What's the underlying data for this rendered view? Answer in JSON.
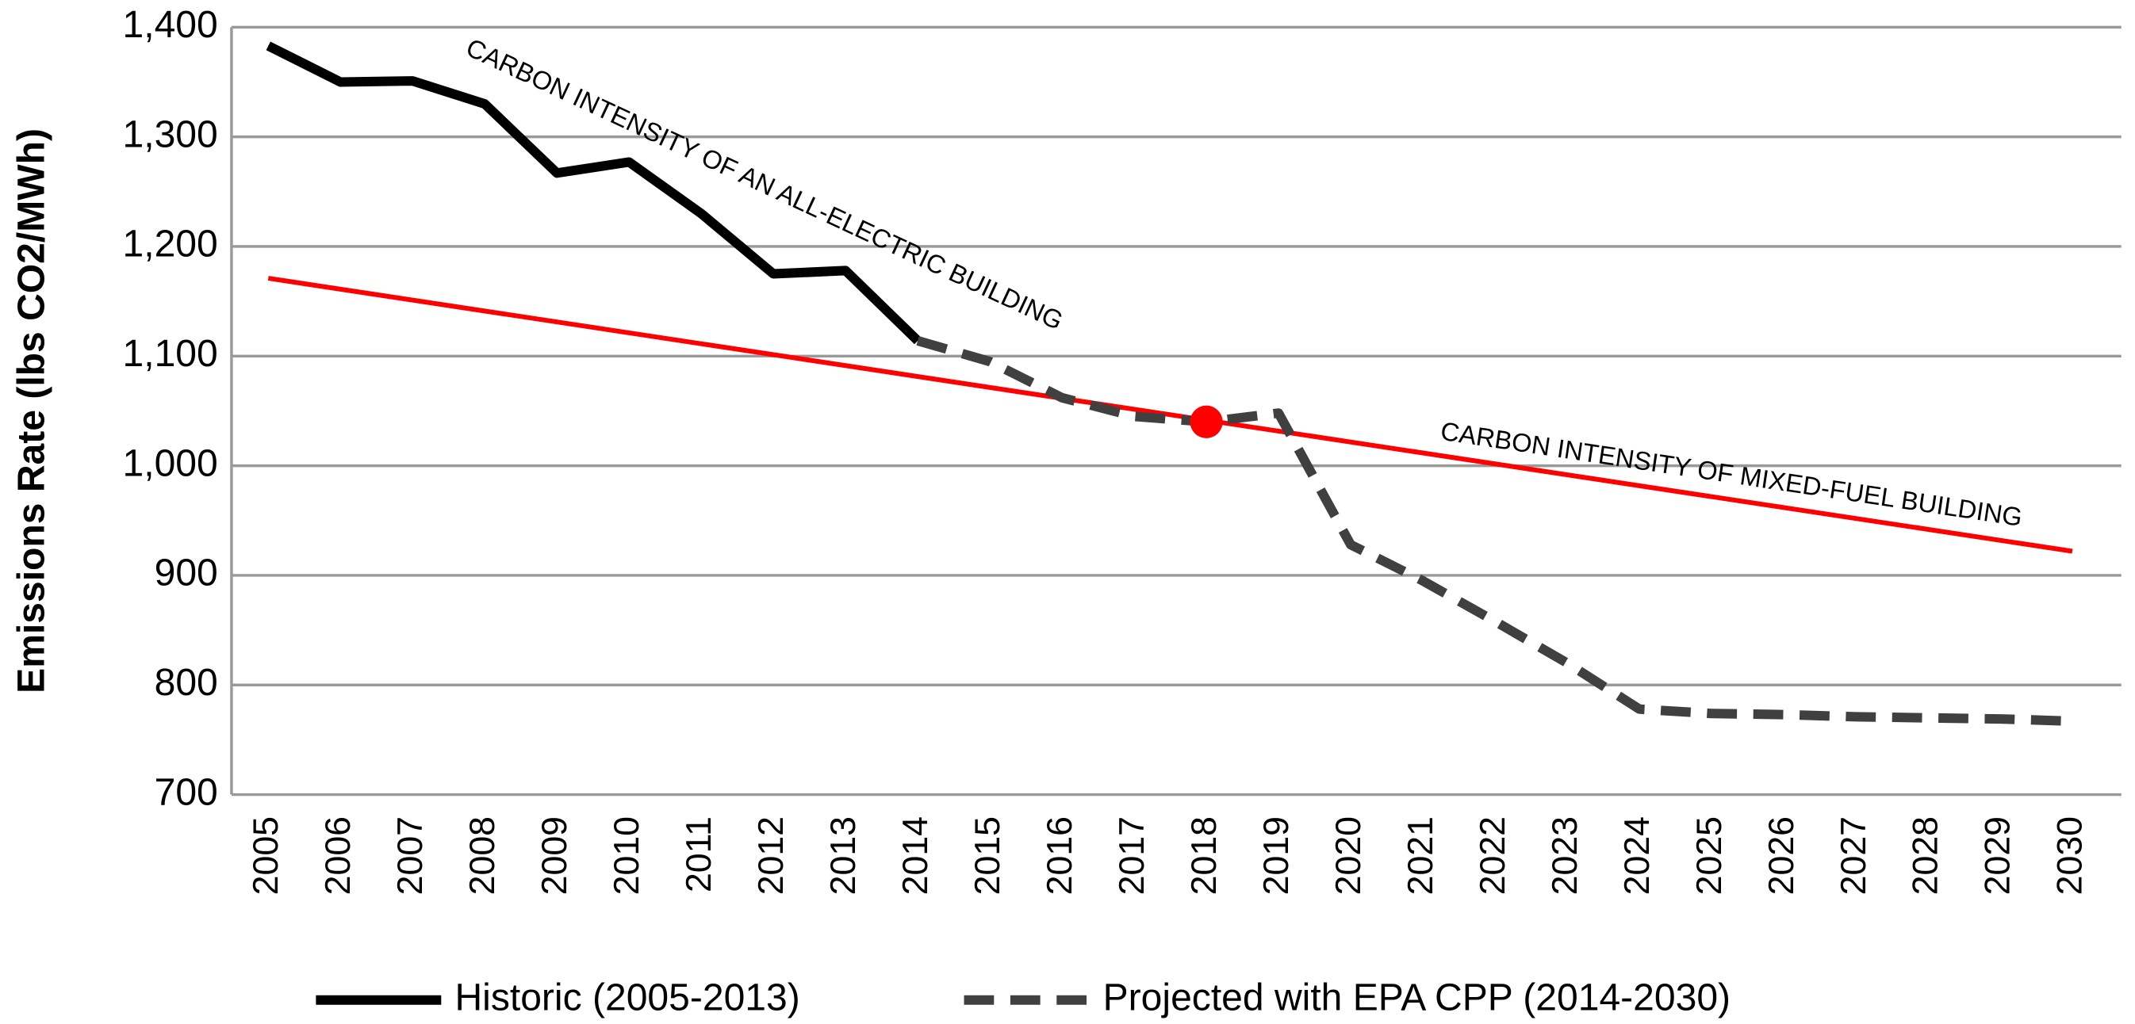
{
  "chart_data": {
    "type": "line",
    "y_label": "Emissions Rate (lbs CO2/MWh)",
    "categories": [
      "2005",
      "2006",
      "2007",
      "2008",
      "2009",
      "2010",
      "2011",
      "2012",
      "2013",
      "2014",
      "2015",
      "2016",
      "2017",
      "2018",
      "2019",
      "2020",
      "2021",
      "2022",
      "2023",
      "2024",
      "2025",
      "2026",
      "2027",
      "2028",
      "2029",
      "2030"
    ],
    "series": [
      {
        "name": "Historic (2005-2013)",
        "color": "#000000",
        "dashed": false,
        "values": [
          1383,
          1350,
          1351,
          1330,
          1267,
          1277,
          1230,
          1175,
          1178,
          1114,
          null,
          null,
          null,
          null,
          null,
          null,
          null,
          null,
          null,
          null,
          null,
          null,
          null,
          null,
          null,
          null
        ]
      },
      {
        "name": "Projected with EPA CPP (2014-2030)",
        "color": "#404040",
        "dashed": true,
        "values": [
          null,
          null,
          null,
          null,
          null,
          null,
          null,
          null,
          null,
          1114,
          1095,
          1062,
          1045,
          1040,
          1048,
          928,
          895,
          858,
          820,
          778,
          774,
          773,
          771,
          770,
          769,
          767
        ]
      }
    ],
    "reference_line": {
      "color": "#ff0000",
      "categories": [
        "2005",
        "2030"
      ],
      "values": [
        1171,
        922
      ]
    },
    "marker": {
      "category": "2018",
      "value": 1040,
      "color": "#ff0000"
    },
    "annotations": [
      {
        "text": "CARBON INTENSITY OF AN ALL-ELECTRIC BUILDING",
        "color": "#000000"
      },
      {
        "text": "CARBON INTENSITY OF MIXED-FUEL BUILDING",
        "color": "#ff0000"
      }
    ],
    "ylim": [
      700,
      1400
    ],
    "yticks": [
      700,
      800,
      900,
      {
        "value": 1000,
        "label": "1,000"
      },
      {
        "value": 1100,
        "label": "1,100"
      },
      {
        "value": 1200,
        "label": "1,200"
      },
      {
        "value": 1300,
        "label": "1,300"
      },
      {
        "value": 1400,
        "label": "1,400"
      }
    ],
    "grid": true,
    "legend": "bottom"
  }
}
